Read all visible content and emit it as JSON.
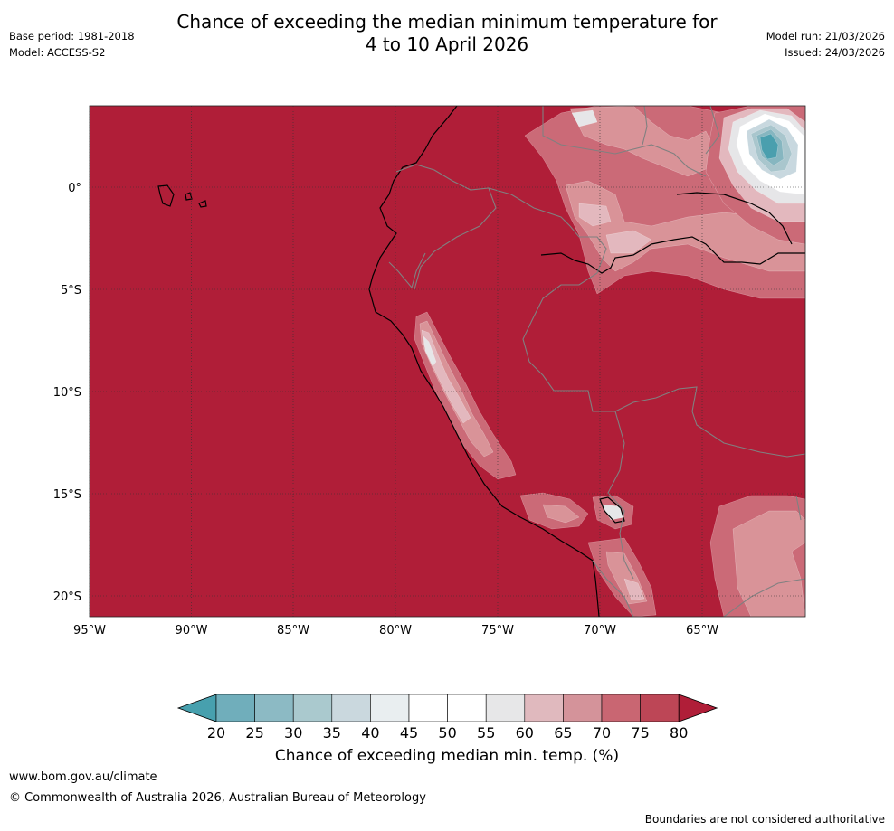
{
  "header": {
    "title_line1": "Chance of exceeding the median minimum temperature for",
    "title_line2": "4 to 10 April 2026",
    "base_period": "Base period: 1981-2018",
    "model": "Model: ACCESS-S2",
    "model_run": "Model run: 21/03/2026",
    "issued": "Issued: 24/03/2026"
  },
  "map": {
    "region": "Western South America",
    "lon_ticks": [
      "95°W",
      "90°W",
      "85°W",
      "80°W",
      "75°W",
      "70°W",
      "65°W"
    ],
    "lat_ticks": [
      "0°",
      "5°S",
      "10°S",
      "15°S",
      "20°S"
    ],
    "colors": {
      "high": "#b01e38",
      "c75": "#c14555",
      "c70": "#cb6a77",
      "c65": "#d99398",
      "c60": "#e3b8be",
      "c55": "#e6e6e8",
      "c50": "#ffffff",
      "c35": "#c8d8df",
      "c30": "#a9c6cd",
      "c25": "#86b6c0",
      "low": "#4a9fae"
    }
  },
  "colorbar": {
    "ticks": [
      "20",
      "25",
      "30",
      "35",
      "40",
      "45",
      "50",
      "55",
      "60",
      "65",
      "70",
      "75",
      "80"
    ],
    "colors": [
      "#70aebb",
      "#8cbac4",
      "#aac9ce",
      "#cad8de",
      "#e9eef0",
      "#ffffff",
      "#ffffff",
      "#e7e7e8",
      "#e0b9be",
      "#d4939a",
      "#c96672",
      "#bd4656"
    ],
    "low_ext_color": "#47a0ae",
    "high_ext_color": "#b01e38",
    "label": "Chance of exceeding median min. temp. (%)"
  },
  "footer": {
    "url": "www.bom.gov.au/climate",
    "copyright": "© Commonwealth of Australia 2026, Australian Bureau of Meteorology",
    "disclaimer": "Boundaries are not considered authoritative"
  }
}
